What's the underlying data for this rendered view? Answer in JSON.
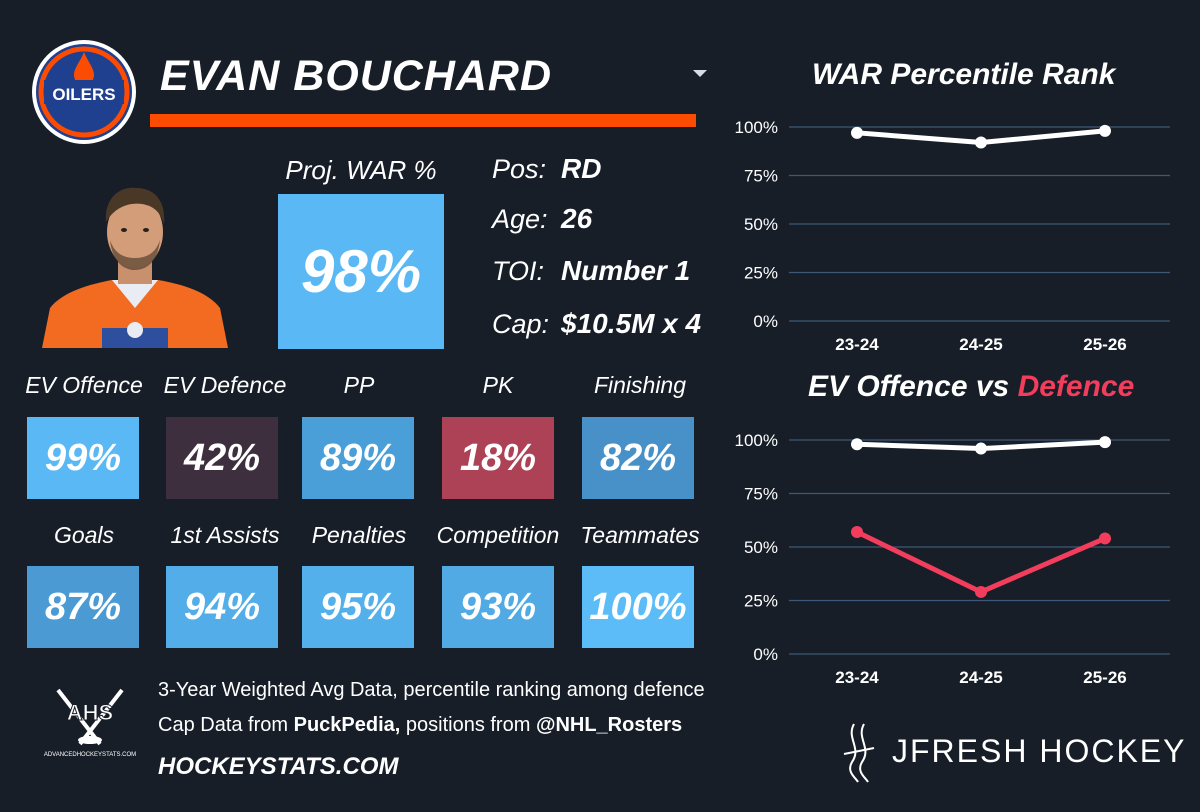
{
  "player": {
    "name": "EVAN BOUCHARD",
    "proj_war_label": "Proj. WAR %",
    "proj_war_value": "98%",
    "info": [
      {
        "label": "Pos:",
        "value": "RD"
      },
      {
        "label": "Age:",
        "value": "26"
      },
      {
        "label": "TOI:",
        "value": "Number 1"
      },
      {
        "label": "Cap:",
        "value": "$10.5M x 4"
      }
    ]
  },
  "team_logo": {
    "text": "OILERS"
  },
  "colors": {
    "accent_orange": "#fc4c02",
    "background": "#171e28",
    "white_line": "#ffffff",
    "pink_line": "#f23d5d",
    "tile_light": "#5ab9f5",
    "tile_mid": "#4a9fd6",
    "tile_dark": "#3f2f3f",
    "tile_red": "#b04356"
  },
  "tiles": [
    {
      "label": "EV Offence",
      "value": "99%",
      "color": "#5ab9f5"
    },
    {
      "label": "EV Defence",
      "value": "42%",
      "color": "#3d2f3e"
    },
    {
      "label": "PP",
      "value": "89%",
      "color": "#4b9fd8"
    },
    {
      "label": "PK",
      "value": "18%",
      "color": "#ad4256"
    },
    {
      "label": "Finishing",
      "value": "82%",
      "color": "#4791c8"
    },
    {
      "label": "Goals",
      "value": "87%",
      "color": "#4b9ad3"
    },
    {
      "label": "1st Assists",
      "value": "94%",
      "color": "#52ade8"
    },
    {
      "label": "Penalties",
      "value": "95%",
      "color": "#54b0ea"
    },
    {
      "label": "Competition",
      "value": "93%",
      "color": "#51aae4"
    },
    {
      "label": "Teammates",
      "value": "100%",
      "color": "#5bbcf8"
    }
  ],
  "footer": {
    "line1": "3-Year Weighted Avg Data, percentile ranking among defence",
    "line2_prefix": "Cap Data from ",
    "line2_source1": "PuckPedia,",
    "line2_middle": " positions from ",
    "line2_source2": "@NHL_Rosters",
    "site": "HOCKEYSTATS.COM",
    "ahs_text": "AHS",
    "ahs_sub": "ADVANCEDHOCKEYSTATS.COM",
    "brand": "JFRESH HOCKEY"
  },
  "chart_data": [
    {
      "type": "line",
      "title": "WAR Percentile Rank",
      "categories": [
        "23-24",
        "24-25",
        "25-26"
      ],
      "series": [
        {
          "values": [
            97,
            92,
            98
          ],
          "color": "#ffffff"
        }
      ],
      "y_ticks": [
        "0%",
        "25%",
        "50%",
        "75%",
        "100%"
      ],
      "ylim": [
        0,
        100
      ],
      "grid": true
    },
    {
      "type": "line",
      "title_parts": [
        "EV Offence",
        " vs ",
        "Defence"
      ],
      "categories": [
        "23-24",
        "24-25",
        "25-26"
      ],
      "series": [
        {
          "name": "EV Offence",
          "values": [
            98,
            96,
            99
          ],
          "color": "#ffffff"
        },
        {
          "name": "Defence",
          "values": [
            57,
            29,
            54
          ],
          "color": "#f23d5d"
        }
      ],
      "y_ticks": [
        "0%",
        "25%",
        "50%",
        "75%",
        "100%"
      ],
      "ylim": [
        0,
        100
      ],
      "grid": true
    }
  ]
}
